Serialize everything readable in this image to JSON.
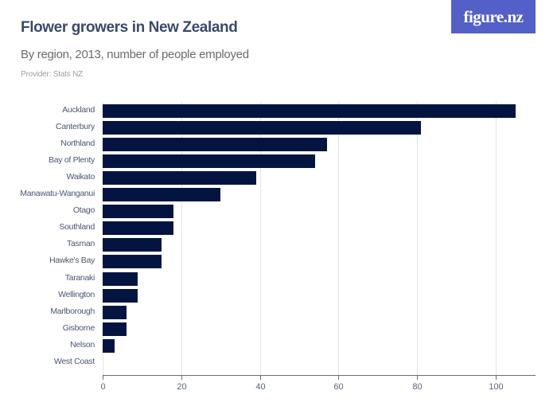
{
  "header": {
    "title": "Flower growers in New Zealand",
    "subtitle": "By region, 2013, number of people employed",
    "provider": "Provider: Stats NZ",
    "logo": "figure.nz"
  },
  "colors": {
    "bar": "#031440",
    "logo_bg": "#5360c7",
    "title": "#3b4a6b"
  },
  "chart_data": {
    "type": "bar",
    "orientation": "horizontal",
    "title": "Flower growers in New Zealand",
    "subtitle": "By region, 2013, number of people employed",
    "xlabel": "",
    "ylabel": "",
    "categories": [
      "Auckland",
      "Canterbury",
      "Northland",
      "Bay of Plenty",
      "Waikato",
      "Manawatu-Wanganui",
      "Otago",
      "Southland",
      "Tasman",
      "Hawke's Bay",
      "Taranaki",
      "Wellington",
      "Marlborough",
      "Gisborne",
      "Nelson",
      "West Coast"
    ],
    "values": [
      105,
      81,
      57,
      54,
      39,
      30,
      18,
      18,
      15,
      15,
      9,
      9,
      6,
      6,
      3,
      0
    ],
    "xlim": [
      0,
      110
    ],
    "xticks": [
      "0",
      "20",
      "40",
      "60",
      "80",
      "100"
    ],
    "grid": true,
    "legend": "none"
  }
}
